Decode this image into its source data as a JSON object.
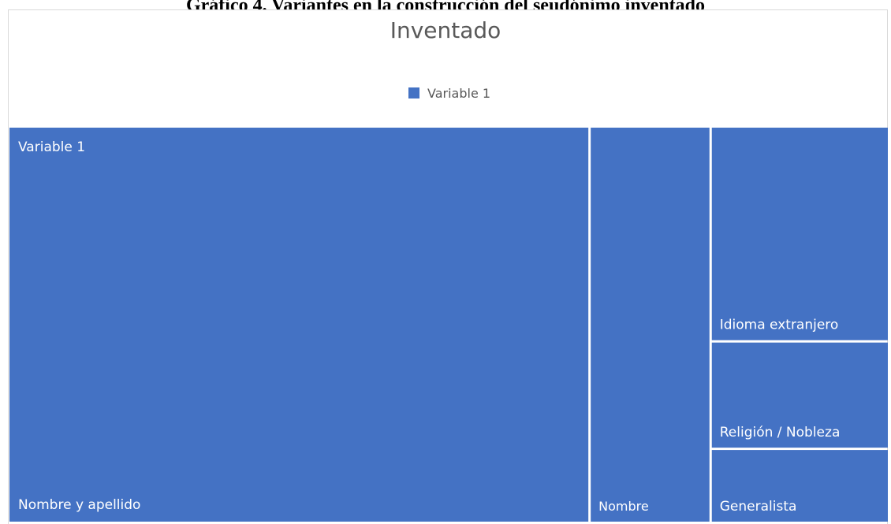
{
  "figure_heading": "Gráfico 4. Variantes en la construcción del seudónimo inventado",
  "chart_data": {
    "type": "treemap",
    "title": "Inventado",
    "legend": {
      "position": "top",
      "entries": [
        "Variable 1"
      ]
    },
    "colors": {
      "fill": "#4472c4",
      "separator": "#ffffff",
      "text": "#ffffff",
      "title": "#595959"
    },
    "group_label": "Variable 1",
    "categories": [
      "Nombre y apellido",
      "Nombre",
      "Idioma extranjero",
      "Religión / Nobleza",
      "Generalista"
    ],
    "values": [
      72,
      15,
      12,
      6,
      4
    ]
  }
}
